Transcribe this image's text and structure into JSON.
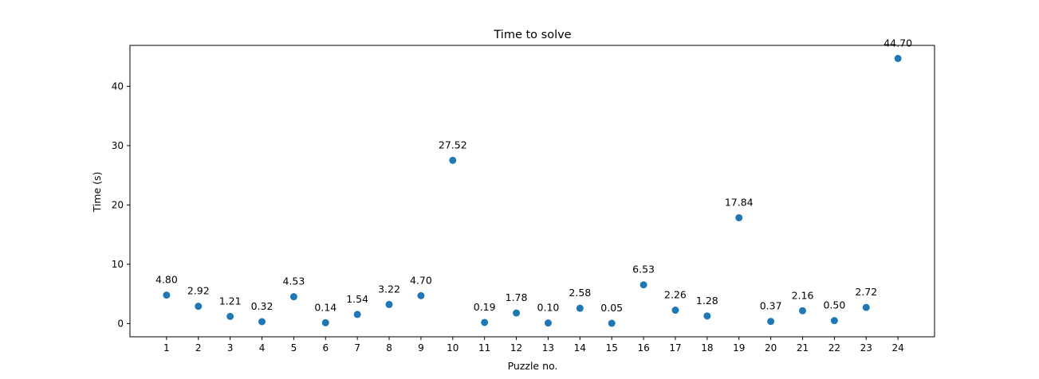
{
  "chart_data": {
    "type": "scatter",
    "title": "Time to solve",
    "xlabel": "Puzzle no.",
    "ylabel": "Time (s)",
    "x": [
      1,
      2,
      3,
      4,
      5,
      6,
      7,
      8,
      9,
      10,
      11,
      12,
      13,
      14,
      15,
      16,
      17,
      18,
      19,
      20,
      21,
      22,
      23,
      24
    ],
    "y": [
      4.8,
      2.92,
      1.21,
      0.32,
      4.53,
      0.14,
      1.54,
      3.22,
      4.7,
      27.52,
      0.19,
      1.78,
      0.1,
      2.58,
      0.05,
      6.53,
      2.26,
      1.28,
      17.84,
      0.37,
      2.16,
      0.5,
      2.72,
      44.7
    ],
    "point_labels": [
      "4.80",
      "2.92",
      "1.21",
      "0.32",
      "4.53",
      "0.14",
      "1.54",
      "3.22",
      "4.70",
      "27.52",
      "0.19",
      "1.78",
      "0.10",
      "2.58",
      "0.05",
      "6.53",
      "2.26",
      "1.28",
      "17.84",
      "0.37",
      "2.16",
      "0.50",
      "2.72",
      "44.70"
    ],
    "xticks": [
      "1",
      "2",
      "3",
      "4",
      "5",
      "6",
      "7",
      "8",
      "9",
      "10",
      "11",
      "12",
      "13",
      "14",
      "15",
      "16",
      "17",
      "18",
      "19",
      "20",
      "21",
      "22",
      "23",
      "24"
    ],
    "yticks": [
      0,
      10,
      20,
      30,
      40
    ],
    "xlim": [
      -0.15,
      25.15
    ],
    "ylim": [
      -2.23,
      46.9
    ],
    "grid": false,
    "color": "#1f77b4"
  }
}
